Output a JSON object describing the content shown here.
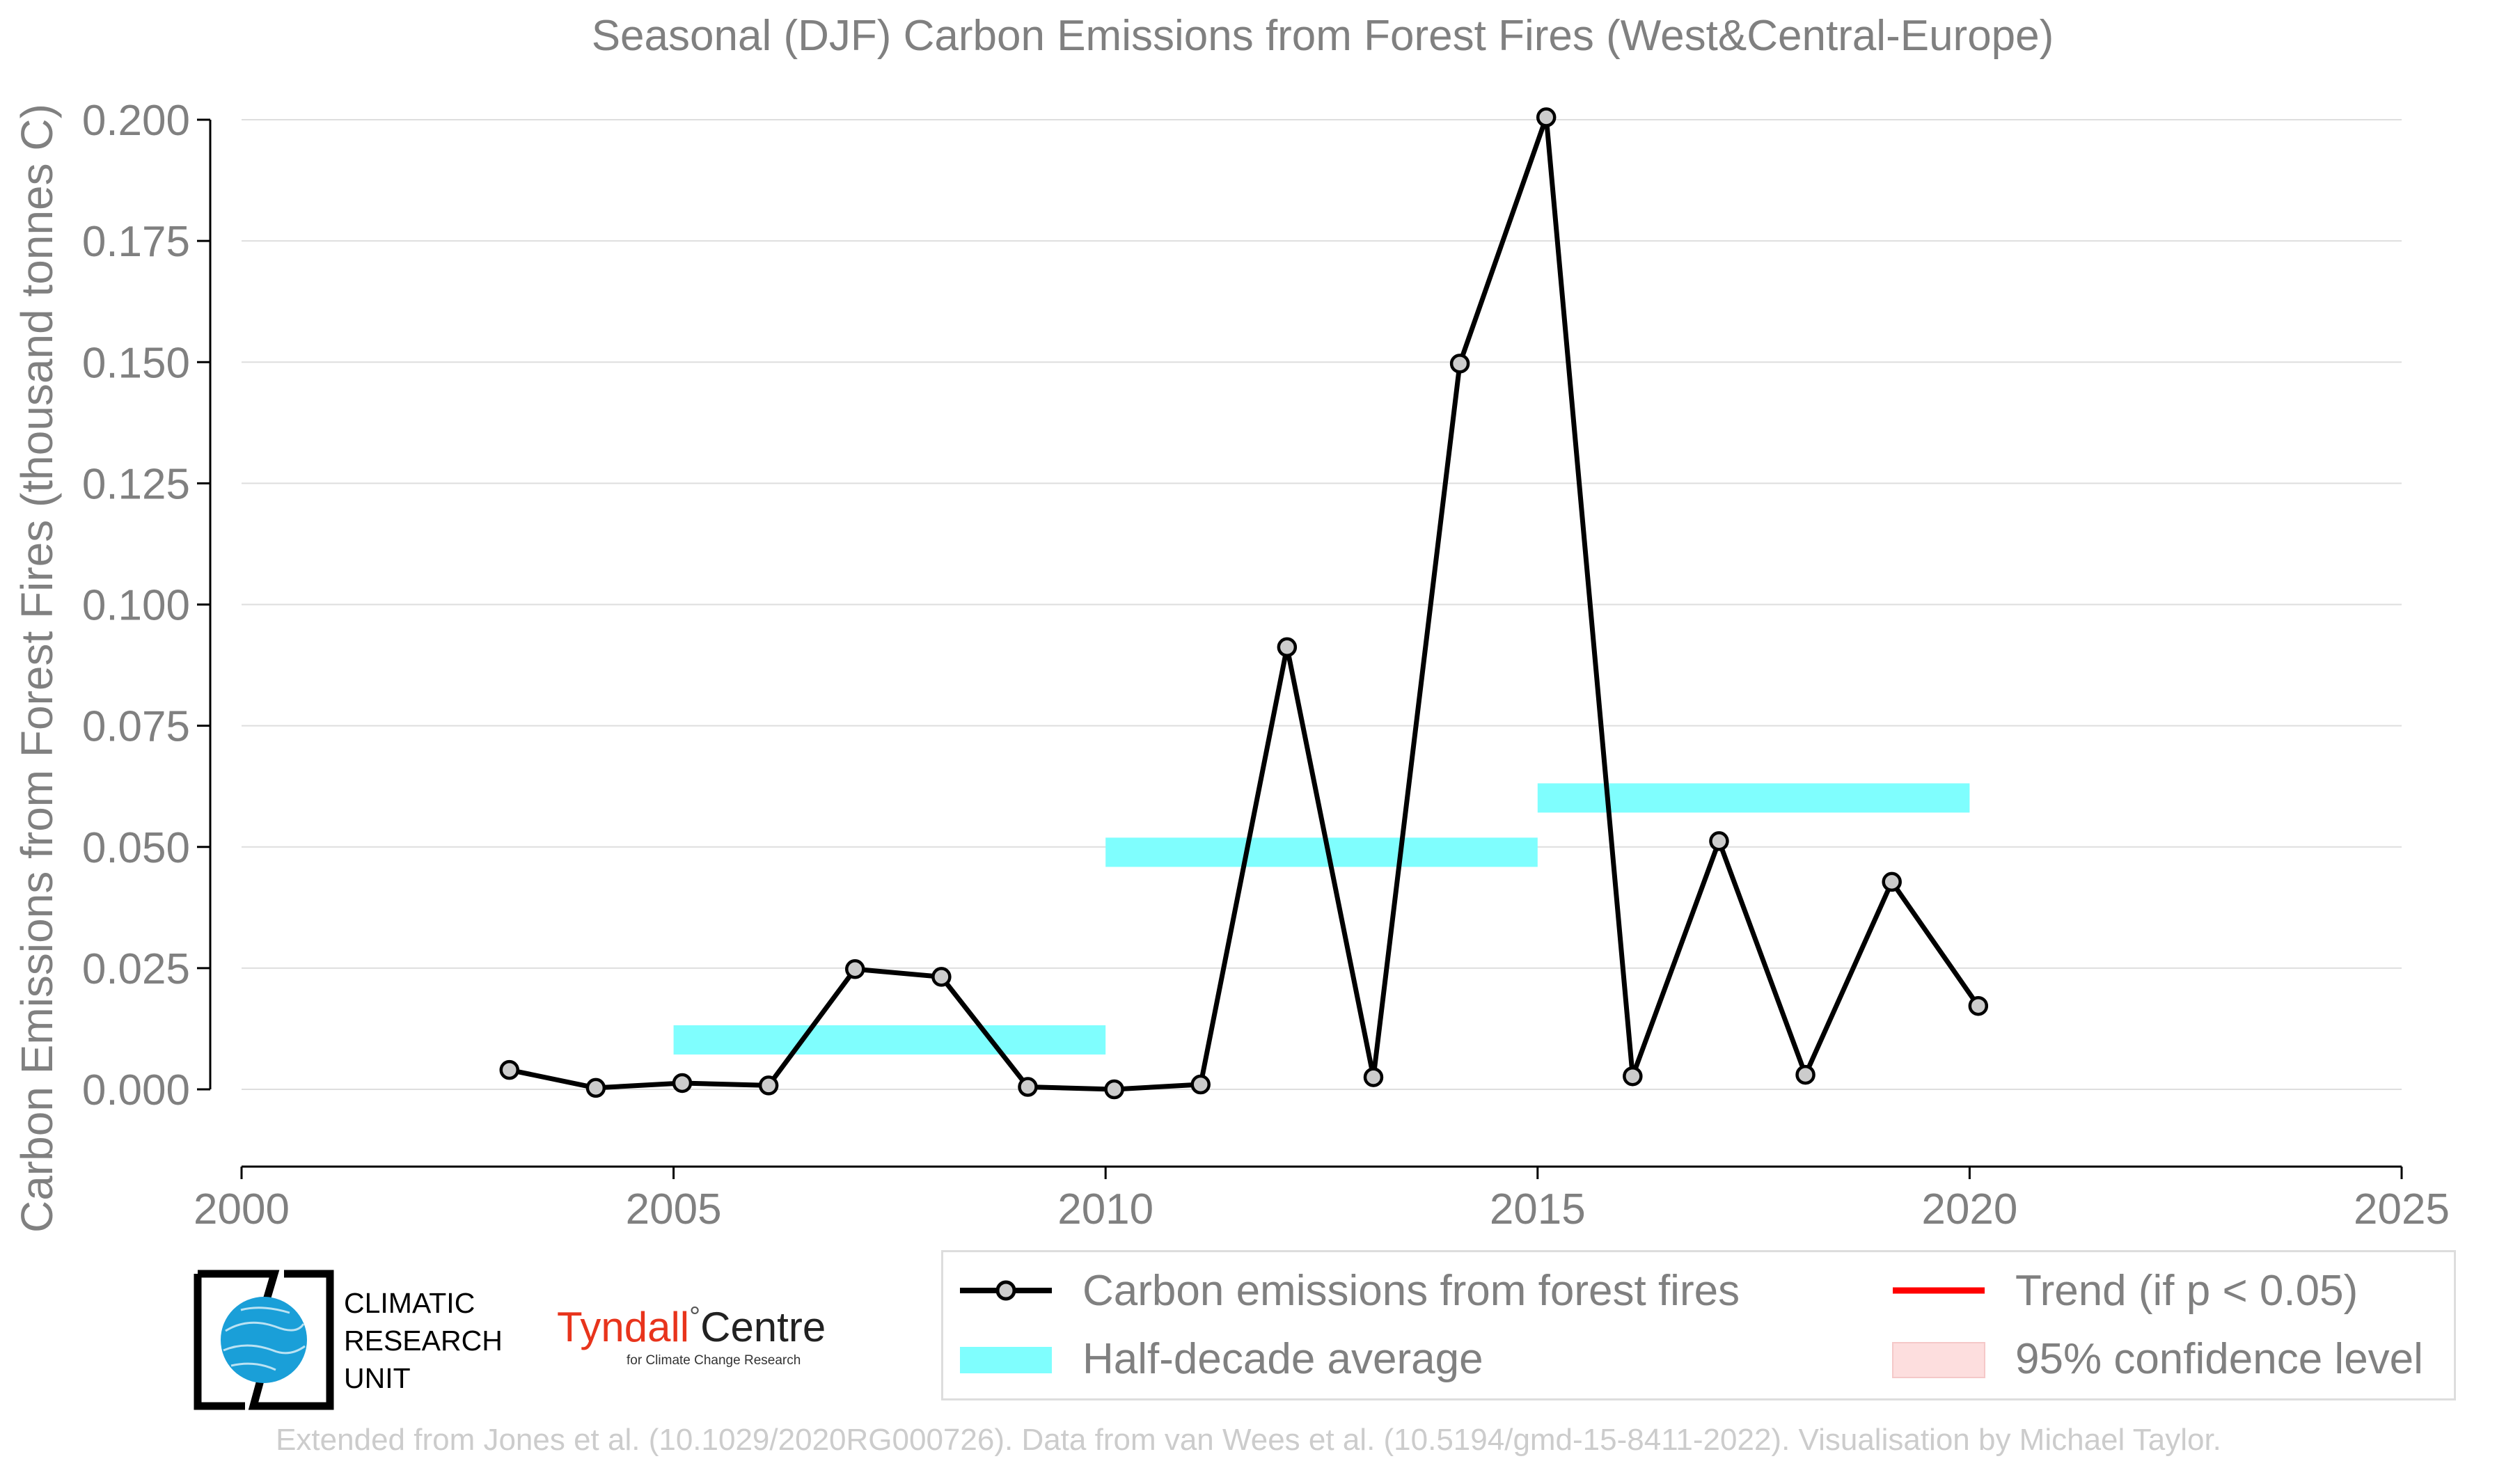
{
  "colors": {
    "line": "#000000",
    "marker_fill": "#cccccc",
    "half_decade": "#7ffefe",
    "trend": "#ff0000",
    "confidence": "#fddede",
    "text": "#808080",
    "grid": "#dedede",
    "footer": "#cccccc"
  },
  "chart_data": {
    "type": "line",
    "title": "Seasonal (DJF) Carbon Emissions from Forest Fires (West&Central-Europe)",
    "xlabel": "",
    "ylabel": "Carbon Emissions from Forest Fires (thousand tonnes C)",
    "xlim": [
      2000,
      2025
    ],
    "ylim": [
      -0.016,
      0.2
    ],
    "x_ticks": [
      "2000",
      "2005",
      "2010",
      "2015",
      "2020",
      "2025"
    ],
    "y_ticks": [
      "0.000",
      "0.025",
      "0.050",
      "0.075",
      "0.100",
      "0.125",
      "0.150",
      "0.175",
      "0.200"
    ],
    "grid": "horizontal",
    "series": [
      {
        "name": "Carbon emissions from forest fires",
        "type": "line",
        "x": [
          2003.1,
          2004.1,
          2005.1,
          2006.1,
          2007.1,
          2008.1,
          2009.1,
          2010.1,
          2011.1,
          2012.1,
          2013.1,
          2014.1,
          2015.1,
          2016.1,
          2017.1,
          2018.1,
          2019.1,
          2020.1
        ],
        "values": [
          0.004,
          0.0003,
          0.0013,
          0.0008,
          0.0248,
          0.0232,
          0.0005,
          0.0,
          0.001,
          0.0912,
          0.0025,
          0.1497,
          0.2005,
          0.0027,
          0.0512,
          0.003,
          0.0428,
          0.0172
        ]
      },
      {
        "name": "Half-decade average",
        "type": "bar_segments",
        "segments": [
          {
            "x_start": 2005,
            "x_end": 2010,
            "value": 0.0102
          },
          {
            "x_start": 2010,
            "x_end": 2015,
            "value": 0.0489
          },
          {
            "x_start": 2015,
            "x_end": 2020,
            "value": 0.0601
          }
        ]
      }
    ],
    "legend": {
      "placement": "bottom-right",
      "entries": [
        "Carbon emissions from forest fires",
        "Half-decade average",
        "Trend (if p < 0.05)",
        "95% confidence level"
      ]
    }
  },
  "logos": {
    "cru": {
      "line1": "CLIMATIC",
      "line2": "RESEARCH",
      "line3": "UNIT"
    },
    "tyndall": {
      "main": "Tyndall",
      "degree": "°",
      "centre": "Centre",
      "sub": "for Climate Change Research"
    }
  },
  "footer": "Extended from Jones et al. (10.1029/2020RG000726). Data from van Wees et al. (10.5194/gmd-15-8411-2022). Visualisation by Michael Taylor."
}
